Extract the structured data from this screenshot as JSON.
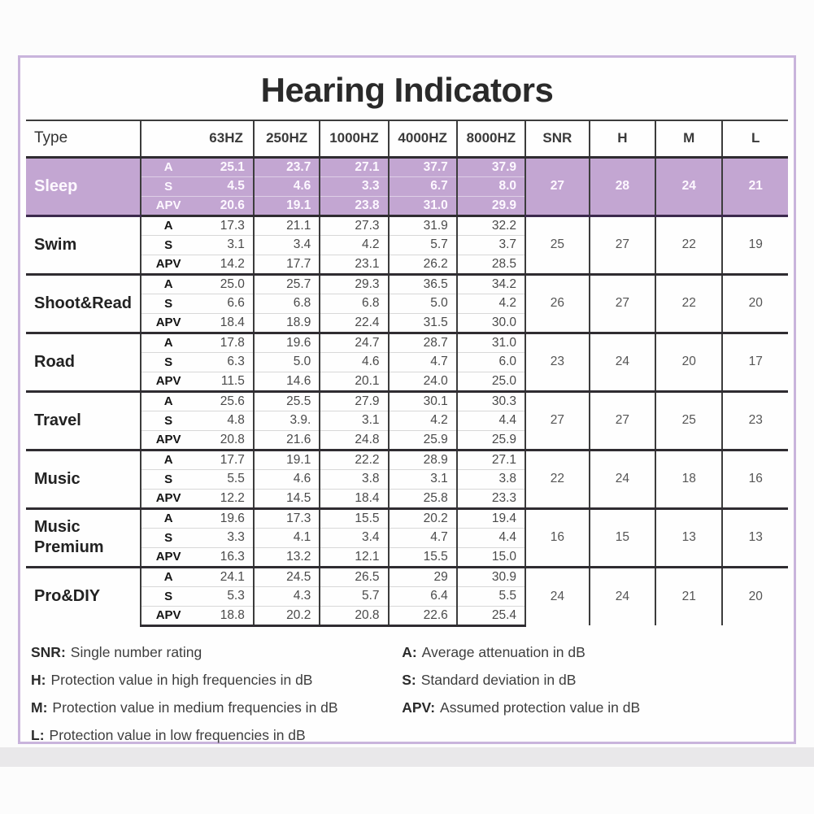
{
  "title": "Hearing Indicators",
  "table": {
    "columns": [
      "Type",
      "63HZ",
      "250HZ",
      "1000HZ",
      "4000HZ",
      "8000HZ",
      "SNR",
      "H",
      "M",
      "L"
    ],
    "col_widths_pct": [
      15.1,
      14.8,
      8.7,
      9.0,
      9.0,
      9.0,
      8.4,
      8.7,
      8.8,
      8.6
    ],
    "row_labels": [
      "A",
      "S",
      "APV"
    ],
    "groups": [
      {
        "type": "Sleep",
        "highlighted": true,
        "rows": [
          {
            "label": "A",
            "values": [
              "25.1",
              "23.7",
              "27.1",
              "37.7",
              "37.9"
            ]
          },
          {
            "label": "S",
            "values": [
              "4.5",
              "4.6",
              "3.3",
              "6.7",
              "8.0"
            ]
          },
          {
            "label": "APV",
            "values": [
              "20.6",
              "19.1",
              "23.8",
              "31.0",
              "29.9"
            ]
          }
        ],
        "summary": {
          "SNR": "27",
          "H": "28",
          "M": "24",
          "L": "21"
        }
      },
      {
        "type": "Swim",
        "highlighted": false,
        "rows": [
          {
            "label": "A",
            "values": [
              "17.3",
              "21.1",
              "27.3",
              "31.9",
              "32.2"
            ]
          },
          {
            "label": "S",
            "values": [
              "3.1",
              "3.4",
              "4.2",
              "5.7",
              "3.7"
            ]
          },
          {
            "label": "APV",
            "values": [
              "14.2",
              "17.7",
              "23.1",
              "26.2",
              "28.5"
            ]
          }
        ],
        "summary": {
          "SNR": "25",
          "H": "27",
          "M": "22",
          "L": "19"
        }
      },
      {
        "type": "Shoot&Read",
        "highlighted": false,
        "rows": [
          {
            "label": "A",
            "values": [
              "25.0",
              "25.7",
              "29.3",
              "36.5",
              "34.2"
            ]
          },
          {
            "label": "S",
            "values": [
              "6.6",
              "6.8",
              "6.8",
              "5.0",
              "4.2"
            ]
          },
          {
            "label": "APV",
            "values": [
              "18.4",
              "18.9",
              "22.4",
              "31.5",
              "30.0"
            ]
          }
        ],
        "summary": {
          "SNR": "26",
          "H": "27",
          "M": "22",
          "L": "20"
        }
      },
      {
        "type": "Road",
        "highlighted": false,
        "rows": [
          {
            "label": "A",
            "values": [
              "17.8",
              "19.6",
              "24.7",
              "28.7",
              "31.0"
            ]
          },
          {
            "label": "S",
            "values": [
              "6.3",
              "5.0",
              "4.6",
              "4.7",
              "6.0"
            ]
          },
          {
            "label": "APV",
            "values": [
              "11.5",
              "14.6",
              "20.1",
              "24.0",
              "25.0"
            ]
          }
        ],
        "summary": {
          "SNR": "23",
          "H": "24",
          "M": "20",
          "L": "17"
        }
      },
      {
        "type": "Travel",
        "highlighted": false,
        "rows": [
          {
            "label": "A",
            "values": [
              "25.6",
              "25.5",
              "27.9",
              "30.1",
              "30.3"
            ]
          },
          {
            "label": "S",
            "values": [
              "4.8",
              "3.9.",
              "3.1",
              "4.2",
              "4.4"
            ]
          },
          {
            "label": "APV",
            "values": [
              "20.8",
              "21.6",
              "24.8",
              "25.9",
              "25.9"
            ]
          }
        ],
        "summary": {
          "SNR": "27",
          "H": "27",
          "M": "25",
          "L": "23"
        }
      },
      {
        "type": "Music",
        "highlighted": false,
        "rows": [
          {
            "label": "A",
            "values": [
              "17.7",
              "19.1",
              "22.2",
              "28.9",
              "27.1"
            ]
          },
          {
            "label": "S",
            "values": [
              "5.5",
              "4.6",
              "3.8",
              "3.1",
              "3.8"
            ]
          },
          {
            "label": "APV",
            "values": [
              "12.2",
              "14.5",
              "18.4",
              "25.8",
              "23.3"
            ]
          }
        ],
        "summary": {
          "SNR": "22",
          "H": "24",
          "M": "18",
          "L": "16"
        }
      },
      {
        "type": "Music Premium",
        "highlighted": false,
        "rows": [
          {
            "label": "A",
            "values": [
              "19.6",
              "17.3",
              "15.5",
              "20.2",
              "19.4"
            ]
          },
          {
            "label": "S",
            "values": [
              "3.3",
              "4.1",
              "3.4",
              "4.7",
              "4.4"
            ]
          },
          {
            "label": "APV",
            "values": [
              "16.3",
              "13.2",
              "12.1",
              "15.5",
              "15.0"
            ]
          }
        ],
        "summary": {
          "SNR": "16",
          "H": "15",
          "M": "13",
          "L": "13"
        }
      },
      {
        "type": "Pro&DIY",
        "highlighted": false,
        "rows": [
          {
            "label": "A",
            "values": [
              "24.1",
              "24.5",
              "26.5",
              "29",
              "30.9"
            ]
          },
          {
            "label": "S",
            "values": [
              "5.3",
              "4.3",
              "5.7",
              "6.4",
              "5.5"
            ]
          },
          {
            "label": "APV",
            "values": [
              "18.8",
              "20.2",
              "20.8",
              "22.6",
              "25.4"
            ]
          }
        ],
        "summary": {
          "SNR": "24",
          "H": "24",
          "M": "21",
          "L": "20"
        }
      }
    ]
  },
  "legend": {
    "left": [
      {
        "term": "SNR:",
        "desc": "Single number rating"
      },
      {
        "term": "H:",
        "desc": "Protection value in high frequencies in dB"
      },
      {
        "term": "M:",
        "desc": "Protection value in medium frequencies in dB"
      },
      {
        "term": "L:",
        "desc": "Protection value in low frequencies in dB"
      }
    ],
    "right": [
      {
        "term": "A:",
        "desc": "Average attenuation in dB"
      },
      {
        "term": "S:",
        "desc": "Standard deviation in dB"
      },
      {
        "term": "APV:",
        "desc": "Assumed protection value in dB"
      }
    ]
  },
  "colors": {
    "highlight_bg": "#c3a6d2",
    "frame_border": "#c9b4dc",
    "dark_line": "#2f2c31"
  }
}
